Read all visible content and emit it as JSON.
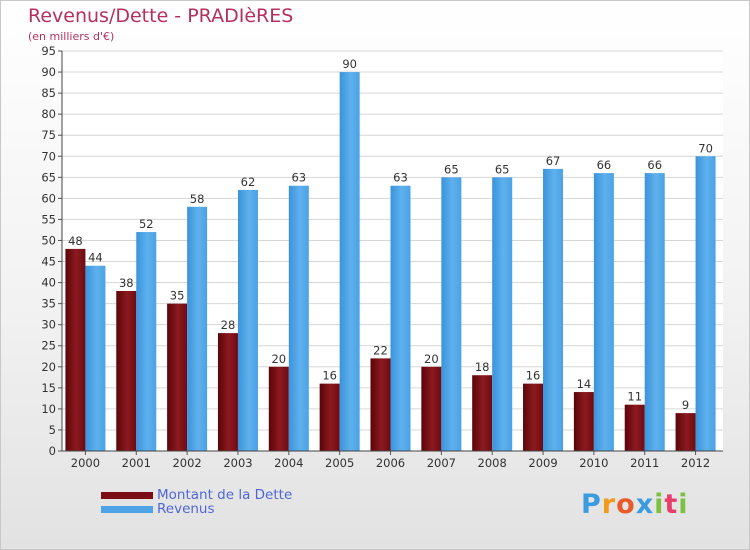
{
  "chart_data": {
    "type": "bar",
    "title": "Revenus/Dette - PRADIèRES",
    "subtitle": "(en milliers d'€)",
    "categories": [
      "2000",
      "2001",
      "2002",
      "2003",
      "2004",
      "2005",
      "2006",
      "2007",
      "2008",
      "2009",
      "2010",
      "2011",
      "2012"
    ],
    "series": [
      {
        "name": "Montant de la Dette",
        "color": "#7a0e14",
        "values": [
          48,
          38,
          35,
          28,
          20,
          16,
          22,
          20,
          18,
          16,
          14,
          11,
          9
        ]
      },
      {
        "name": "Revenus",
        "color": "#4da3e6",
        "values": [
          44,
          52,
          58,
          62,
          63,
          90,
          63,
          65,
          65,
          67,
          66,
          66,
          70
        ]
      }
    ],
    "ylim": [
      0,
      95
    ],
    "yticks": [
      0,
      5,
      10,
      15,
      20,
      25,
      30,
      35,
      40,
      45,
      50,
      55,
      60,
      65,
      70,
      75,
      80,
      85,
      90,
      95
    ],
    "grid": true,
    "legend": "bottom-left"
  },
  "logo": {
    "letters": [
      "P",
      "r",
      "o",
      "x",
      "i",
      "t",
      "i"
    ]
  }
}
